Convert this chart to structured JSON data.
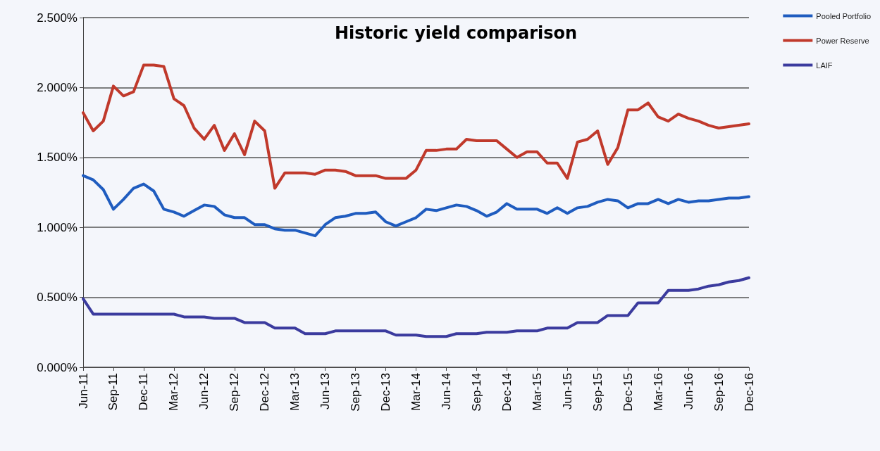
{
  "chart_data": {
    "type": "line",
    "title": "Historic yield comparison",
    "categories": [
      "Jun-11",
      null,
      null,
      "Sep-11",
      null,
      null,
      "Dec-11",
      null,
      null,
      "Mar-12",
      null,
      null,
      "Jun-12",
      null,
      null,
      "Sep-12",
      null,
      null,
      "Dec-12",
      null,
      null,
      "Mar-13",
      null,
      null,
      "Jun-13",
      null,
      null,
      "Sep-13",
      null,
      null,
      "Dec-13",
      null,
      null,
      "Mar-14",
      null,
      null,
      "Jun-14",
      null,
      null,
      "Sep-14",
      null,
      null,
      "Dec-14",
      null,
      null,
      "Mar-15",
      null,
      null,
      "Jun-15",
      null,
      null,
      "Sep-15",
      null,
      null,
      "Dec-15",
      null,
      null,
      "Mar-16",
      null,
      null,
      "Jun-16",
      null,
      null,
      "Sep-16",
      null,
      null,
      "Dec-16"
    ],
    "series": [
      {
        "name": "Pooled Portfolio",
        "color": "#1f5cbf",
        "values": [
          1.37,
          1.34,
          1.27,
          1.13,
          1.2,
          1.28,
          1.31,
          1.26,
          1.13,
          1.11,
          1.08,
          1.12,
          1.16,
          1.15,
          1.09,
          1.07,
          1.07,
          1.02,
          1.02,
          0.99,
          0.98,
          0.98,
          0.96,
          0.94,
          1.02,
          1.07,
          1.08,
          1.1,
          1.1,
          1.11,
          1.04,
          1.01,
          1.04,
          1.07,
          1.13,
          1.12,
          1.14,
          1.16,
          1.15,
          1.12,
          1.08,
          1.11,
          1.17,
          1.13,
          1.13,
          1.13,
          1.1,
          1.14,
          1.1,
          1.14,
          1.15,
          1.18,
          1.2,
          1.19,
          1.14,
          1.17,
          1.17,
          1.2,
          1.17,
          1.2,
          1.18,
          1.19,
          1.19,
          1.2,
          1.21,
          1.21,
          1.22
        ]
      },
      {
        "name": "Power Reserve",
        "color": "#c0392b",
        "values": [
          1.82,
          1.69,
          1.76,
          2.01,
          1.94,
          1.97,
          2.16,
          2.16,
          2.15,
          1.92,
          1.87,
          1.71,
          1.63,
          1.73,
          1.55,
          1.67,
          1.52,
          1.76,
          1.69,
          1.28,
          1.39,
          1.39,
          1.39,
          1.38,
          1.41,
          1.41,
          1.4,
          1.37,
          1.37,
          1.37,
          1.35,
          1.35,
          1.35,
          1.41,
          1.55,
          1.55,
          1.56,
          1.56,
          1.63,
          1.62,
          1.62,
          1.62,
          1.56,
          1.5,
          1.54,
          1.54,
          1.46,
          1.46,
          1.35,
          1.61,
          1.63,
          1.69,
          1.45,
          1.57,
          1.84,
          1.84,
          1.89,
          1.79,
          1.76,
          1.81,
          1.78,
          1.76,
          1.73,
          1.71,
          1.72,
          1.73,
          1.74
        ]
      },
      {
        "name": "LAIF",
        "color": "#3b3b9e",
        "values": [
          0.49,
          0.38,
          0.38,
          0.38,
          0.38,
          0.38,
          0.38,
          0.38,
          0.38,
          0.38,
          0.36,
          0.36,
          0.36,
          0.35,
          0.35,
          0.35,
          0.32,
          0.32,
          0.32,
          0.28,
          0.28,
          0.28,
          0.24,
          0.24,
          0.24,
          0.26,
          0.26,
          0.26,
          0.26,
          0.26,
          0.26,
          0.23,
          0.23,
          0.23,
          0.22,
          0.22,
          0.22,
          0.24,
          0.24,
          0.24,
          0.25,
          0.25,
          0.25,
          0.26,
          0.26,
          0.26,
          0.28,
          0.28,
          0.28,
          0.32,
          0.32,
          0.32,
          0.37,
          0.37,
          0.37,
          0.46,
          0.46,
          0.46,
          0.55,
          0.55,
          0.55,
          0.56,
          0.58,
          0.59,
          0.61,
          0.62,
          0.64
        ]
      }
    ],
    "ylim": [
      0,
      2.5
    ],
    "yticks": [
      {
        "value": 0,
        "label": "0.000%"
      },
      {
        "value": 0.5,
        "label": "0.500%"
      },
      {
        "value": 1,
        "label": "1.000%"
      },
      {
        "value": 1.5,
        "label": "1.500%"
      },
      {
        "value": 2,
        "label": "2.000%"
      },
      {
        "value": 2.5,
        "label": "2.500%"
      }
    ],
    "grid": "y",
    "legend": "top right",
    "marker": "none",
    "line_style": "solid"
  }
}
